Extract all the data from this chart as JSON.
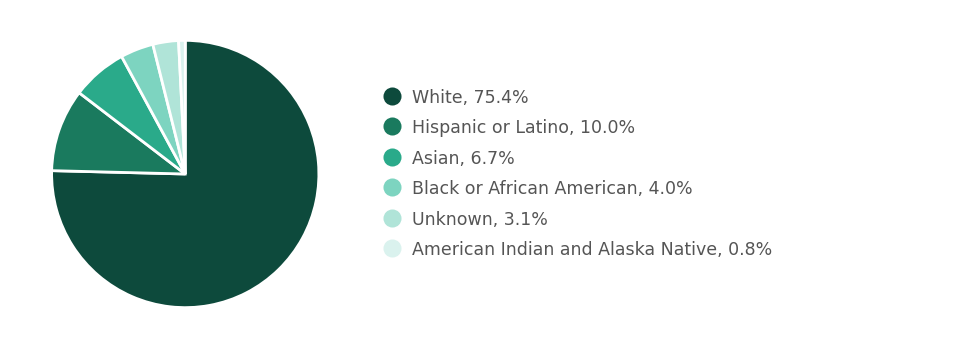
{
  "labels": [
    "White, 75.4%",
    "Hispanic or Latino, 10.0%",
    "Asian, 6.7%",
    "Black or African American, 4.0%",
    "Unknown, 3.1%",
    "American Indian and Alaska Native, 0.8%"
  ],
  "values": [
    75.4,
    10.0,
    6.7,
    4.0,
    3.1,
    0.8
  ],
  "colors": [
    "#0d4a3c",
    "#1a7a5e",
    "#2aaa8a",
    "#7dd4c0",
    "#b0e4d8",
    "#daf2ee"
  ],
  "background_color": "#ffffff",
  "text_color": "#555555",
  "label_fontsize": 12.5,
  "startangle": 90,
  "wedge_edge_color": "#ffffff",
  "wedge_linewidth": 2.0
}
